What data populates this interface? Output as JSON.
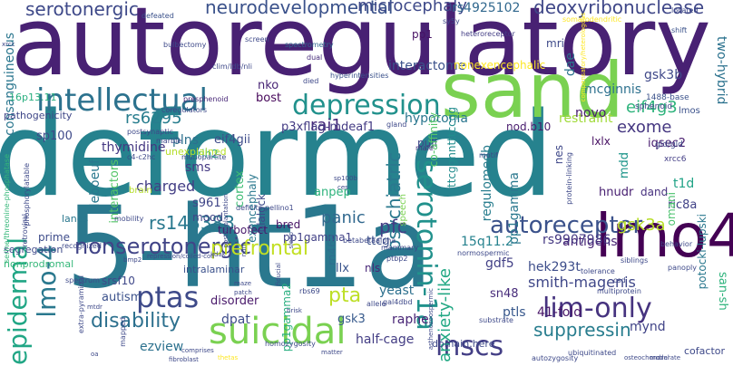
{
  "words": [
    {
      "text": "autoregulatory",
      "color": "#482173"
    },
    {
      "text": "deformed",
      "color": "#26828e"
    },
    {
      "text": "5-ht1a",
      "color": "#2a788e"
    },
    {
      "text": "sand",
      "color": "#7ad151"
    },
    {
      "text": "lmo4",
      "color": "#440154"
    },
    {
      "text": "intellectual",
      "color": "#2c728e"
    },
    {
      "text": "depression",
      "color": "#21918c"
    },
    {
      "text": "suicidal",
      "color": "#7ad151"
    },
    {
      "text": "lim-only",
      "color": "#46337f"
    },
    {
      "text": "serotonin-1a",
      "color": "#21918c"
    },
    {
      "text": "autoreceptor",
      "color": "#3b528b"
    },
    {
      "text": "nonserotonergic",
      "color": "#414487"
    },
    {
      "text": "ptas",
      "color": "#3e4a89"
    },
    {
      "text": "lnscs",
      "color": "#433e85"
    },
    {
      "text": "epidermal",
      "color": "#21a685"
    },
    {
      "text": "lmo-4",
      "color": "#2a788e"
    },
    {
      "text": "neurodevelopmental",
      "color": "#3b528b"
    },
    {
      "text": "serotonergic",
      "color": "#3e4989"
    },
    {
      "text": "microcephaly",
      "color": "#3e4989"
    },
    {
      "text": "rs4925102",
      "color": "#31688e"
    },
    {
      "text": "deoxyribonuclease",
      "color": "#3f4788"
    },
    {
      "text": "disability",
      "color": "#2d708e"
    },
    {
      "text": "prefrontal",
      "color": "#c2df23"
    },
    {
      "text": "rs143383",
      "color": "#2a788e"
    },
    {
      "text": "pta",
      "color": "#bddf26"
    },
    {
      "text": "suppressin",
      "color": "#287d8e"
    },
    {
      "text": "smith-magenis",
      "color": "#3f4788"
    },
    {
      "text": "psychiatric",
      "color": "#2a788e"
    },
    {
      "text": "anxiety-like",
      "color": "#22a884"
    },
    {
      "text": "gsk3a",
      "color": "#b8de29"
    },
    {
      "text": "eif4g3",
      "color": "#2eb37c"
    },
    {
      "text": "exome",
      "color": "#453781"
    },
    {
      "text": "rs6295",
      "color": "#287d8e"
    },
    {
      "text": "rai1",
      "color": "#472a7a"
    },
    {
      "text": "interactome",
      "color": "#3b528b"
    },
    {
      "text": "panic",
      "color": "#31688e"
    },
    {
      "text": "charged",
      "color": "#433e85"
    },
    {
      "text": "pfc",
      "color": "#433e85"
    },
    {
      "text": "mynd",
      "color": "#404387"
    },
    {
      "text": "ezview",
      "color": "#2c718e"
    },
    {
      "text": "antigens",
      "color": "#482475"
    },
    {
      "text": "gdf5",
      "color": "#424086"
    },
    {
      "text": "hek293t",
      "color": "#3d4d8a"
    },
    {
      "text": "sms",
      "color": "#443983"
    },
    {
      "text": "autism",
      "color": "#3b518b"
    },
    {
      "text": "disorder",
      "color": "#48186a"
    },
    {
      "text": "dpat",
      "color": "#3e4c8a"
    },
    {
      "text": "raphe",
      "color": "#482576"
    },
    {
      "text": "half-cage",
      "color": "#433d84"
    },
    {
      "text": "ttcg",
      "color": "#3b518b"
    },
    {
      "text": "pp1gamma1",
      "color": "#424186"
    },
    {
      "text": "rs9907986",
      "color": "#453882"
    },
    {
      "text": "41-fold",
      "color": "#481668"
    },
    {
      "text": "sn48",
      "color": "#472c7a"
    },
    {
      "text": "ptls",
      "color": "#38588c"
    },
    {
      "text": "gsk3",
      "color": "#375a8c"
    },
    {
      "text": "yeast",
      "color": "#2d708e"
    },
    {
      "text": "hypotonia",
      "color": "#2a768e"
    },
    {
      "text": "nod.b10",
      "color": "#481b6d"
    },
    {
      "text": "restraint",
      "color": "#a0da39"
    },
    {
      "text": "iqsec2",
      "color": "#481c6e"
    },
    {
      "text": "lxlx",
      "color": "#471063"
    },
    {
      "text": "mdd",
      "color": "#1f968b"
    },
    {
      "text": "nes",
      "color": "#3f4889"
    },
    {
      "text": "t1d",
      "color": "#20a386"
    },
    {
      "text": "pp1gamma",
      "color": "#2a788e"
    },
    {
      "text": "regulomedb",
      "color": "#287d8e"
    },
    {
      "text": "hnudr",
      "color": "#482071"
    },
    {
      "text": "dand",
      "color": "#46307e"
    },
    {
      "text": "ric8a",
      "color": "#414287"
    },
    {
      "text": "15q11.2",
      "color": "#26828e"
    },
    {
      "text": "thymidine",
      "color": "#453882"
    },
    {
      "text": "plns",
      "color": "#2d708e"
    },
    {
      "text": "eif4gii",
      "color": "#3e4c8a"
    },
    {
      "text": "leboeuf",
      "color": "#2a788e"
    },
    {
      "text": "consanguineous",
      "color": "#2a768e"
    },
    {
      "text": "sp100",
      "color": "#3e4989"
    },
    {
      "text": "novo",
      "color": "#481c6e"
    },
    {
      "text": "dae",
      "color": "#2c738e"
    },
    {
      "text": "mcginnis",
      "color": "#2d718e"
    },
    {
      "text": "gsk3b",
      "color": "#3f4889"
    },
    {
      "text": "two-hybrid",
      "color": "#2c728e"
    },
    {
      "text": "nko",
      "color": "#482475"
    },
    {
      "text": "bost",
      "color": "#46075a"
    },
    {
      "text": "pp1",
      "color": "#471164"
    },
    {
      "text": "mri",
      "color": "#3e4a89"
    },
    {
      "text": "p3xflag-mdeaf1",
      "color": "#443b84"
    },
    {
      "text": "pull",
      "color": "#404688"
    },
    {
      "text": "nonexencephalic",
      "color": "#fde725"
    },
    {
      "text": "ttcggnntttccgg",
      "color": "#228c8d"
    },
    {
      "text": "co-affinity",
      "color": "#54c568"
    },
    {
      "text": "cortex",
      "color": "#3dbc74"
    },
    {
      "text": "exencephaly",
      "color": "#2a788e"
    },
    {
      "text": "interactors",
      "color": "#54c568"
    },
    {
      "text": "s961",
      "color": "#404688"
    },
    {
      "text": "blalock",
      "color": "#3e4989"
    },
    {
      "text": "anpep",
      "color": "#2eb37c"
    },
    {
      "text": "arih2",
      "color": "#20a486"
    },
    {
      "text": "mood",
      "color": "#404688"
    },
    {
      "text": "turbofect",
      "color": "#481a6c"
    },
    {
      "text": "bred",
      "color": "#471365"
    },
    {
      "text": "rn46a",
      "color": "#2e6e8e"
    },
    {
      "text": "llx",
      "color": "#3a548c"
    },
    {
      "text": "nls",
      "color": "#482677"
    },
    {
      "text": "pp1gamma2",
      "color": "#29af7f"
    },
    {
      "text": "srsf10",
      "color": "#3f4889"
    },
    {
      "text": "prime",
      "color": "#3e4c8a"
    },
    {
      "text": "lanes",
      "color": "#2a778e"
    },
    {
      "text": "segregation",
      "color": "#3e4989"
    },
    {
      "text": "nonprodromal",
      "color": "#35b779"
    },
    {
      "text": "intralaminar",
      "color": "#3b518b"
    },
    {
      "text": "pathogenicity",
      "color": "#3f4788"
    },
    {
      "text": "unexplained",
      "color": "#b5de2b"
    },
    {
      "text": "16p13.11",
      "color": "#29af7f"
    },
    {
      "text": "omani",
      "color": "#4ac16d"
    },
    {
      "text": "potocki-lupski",
      "color": "#2a788e"
    },
    {
      "text": "xrcc6",
      "color": "#433e85"
    },
    {
      "text": "lmos",
      "color": "#3b528b"
    },
    {
      "text": "sphenoid",
      "color": "#414487"
    },
    {
      "text": "gld/gld",
      "color": "#3e4989"
    },
    {
      "text": "1488-base",
      "color": "#3b528b"
    },
    {
      "text": "spectrometry",
      "color": "#31688e"
    },
    {
      "text": "clim/ldb/nli",
      "color": "#3e4989"
    },
    {
      "text": "heteroreceptor",
      "color": "#433e85"
    },
    {
      "text": "sy5y",
      "color": "#3e4989"
    },
    {
      "text": "bulbectomy",
      "color": "#3e4989"
    },
    {
      "text": "screen",
      "color": "#3e4989"
    },
    {
      "text": "defeated",
      "color": "#3b528b"
    },
    {
      "text": "somatodendritic",
      "color": "#fde725"
    },
    {
      "text": "located",
      "color": "#3e4989"
    },
    {
      "text": "shift",
      "color": "#3b528b"
    },
    {
      "text": "dual",
      "color": "#472d7b"
    },
    {
      "text": "died",
      "color": "#3e4989"
    },
    {
      "text": "hyperintensities",
      "color": "#3b528b"
    },
    {
      "text": "presphenoid",
      "color": "#482777"
    },
    {
      "text": "coregulators",
      "color": "#3e4989"
    },
    {
      "text": "postsynaptic",
      "color": "#3e4989"
    },
    {
      "text": "gland",
      "color": "#3e4989"
    },
    {
      "text": "male",
      "color": "#46337f"
    },
    {
      "text": "motif",
      "color": "#3e4989"
    },
    {
      "text": "siblings",
      "color": "#3e4989"
    },
    {
      "text": "behavior",
      "color": "#3e4989"
    },
    {
      "text": "panoply",
      "color": "#3e4989"
    },
    {
      "text": "tolerance",
      "color": "#3e4989"
    },
    {
      "text": "csd",
      "color": "#3e4989"
    },
    {
      "text": "marble",
      "color": "#3e4989"
    },
    {
      "text": "c4-c2hc",
      "color": "#3e4989"
    },
    {
      "text": "monopartite",
      "color": "#3e4989"
    },
    {
      "text": "sp100b",
      "color": "#3e4989"
    },
    {
      "text": "ces",
      "color": "#3e4989"
    },
    {
      "text": "brain",
      "color": "#b5de2b"
    },
    {
      "text": "mobility",
      "color": "#3e4989"
    },
    {
      "text": "deficits",
      "color": "#3e4989"
    },
    {
      "text": "pellino1",
      "color": "#3e4989"
    },
    {
      "text": "speech",
      "color": "#7ad151"
    },
    {
      "text": "recognized",
      "color": "#3e4989"
    },
    {
      "text": "betabetaalpha",
      "color": "#3e4989"
    },
    {
      "text": "mammary",
      "color": "#3e4989"
    },
    {
      "text": "ptbp2",
      "color": "#3e4989"
    },
    {
      "text": "normospermic",
      "color": "#3e4989"
    },
    {
      "text": "multiprotein",
      "color": "#3e4989"
    },
    {
      "text": "repression/coiled-coil",
      "color": "#3e4989"
    },
    {
      "text": "kdak",
      "color": "#3e4989"
    },
    {
      "text": "spectrum",
      "color": "#3e4989"
    },
    {
      "text": "mapped",
      "color": "#3e4989"
    },
    {
      "text": "maze",
      "color": "#3e4989"
    },
    {
      "text": "patch",
      "color": "#3e4989"
    },
    {
      "text": "mtdr",
      "color": "#3e4989"
    },
    {
      "text": "rbs69",
      "color": "#3e4989"
    },
    {
      "text": "allele",
      "color": "#3e4989"
    },
    {
      "text": "gal4dbd",
      "color": "#3e4989"
    },
    {
      "text": "substrate",
      "color": "#3e4989"
    },
    {
      "text": "brisk",
      "color": "#3e4989"
    },
    {
      "text": "matter",
      "color": "#3e4989"
    },
    {
      "text": "homozygosity",
      "color": "#3e4989"
    },
    {
      "text": "domain.here",
      "color": "#3e4989"
    },
    {
      "text": "autozygosity",
      "color": "#3e4989"
    },
    {
      "text": "cofactor",
      "color": "#3e4989"
    },
    {
      "text": "oa",
      "color": "#3e4989"
    },
    {
      "text": "comprises",
      "color": "#3e4989"
    },
    {
      "text": "fibroblast",
      "color": "#3e4989"
    },
    {
      "text": "extra-pyramidal",
      "color": "#3e4989"
    },
    {
      "text": "serine/threonine-phosphatase",
      "color": "#35b779"
    },
    {
      "text": "phosphorylatable",
      "color": "#3e4989"
    },
    {
      "text": "retroviral",
      "color": "#3e4989"
    },
    {
      "text": "postimplantation",
      "color": "#3e4989"
    },
    {
      "text": "protein-linking",
      "color": "#3e4989"
    },
    {
      "text": "compensatory/heterologous",
      "color": "#fde725"
    },
    {
      "text": "bmp2",
      "color": "#3e4989"
    },
    {
      "text": "ndn",
      "color": "#3e4989"
    },
    {
      "text": "asthenozoospermic",
      "color": "#3e4989"
    },
    {
      "text": "fiducial",
      "color": "#3e4989"
    },
    {
      "text": "sleep",
      "color": "#3e4989"
    },
    {
      "text": "thetas",
      "color": "#fde725"
    },
    {
      "text": "ubiquitinated",
      "color": "#3e4989"
    },
    {
      "text": "xrcc",
      "color": "#3e4989"
    },
    {
      "text": "san-sh",
      "color": "#2eb37c"
    },
    {
      "text": "osteochondral",
      "color": "#3e4989"
    },
    {
      "text": "moderate",
      "color": "#3e4989"
    }
  ]
}
